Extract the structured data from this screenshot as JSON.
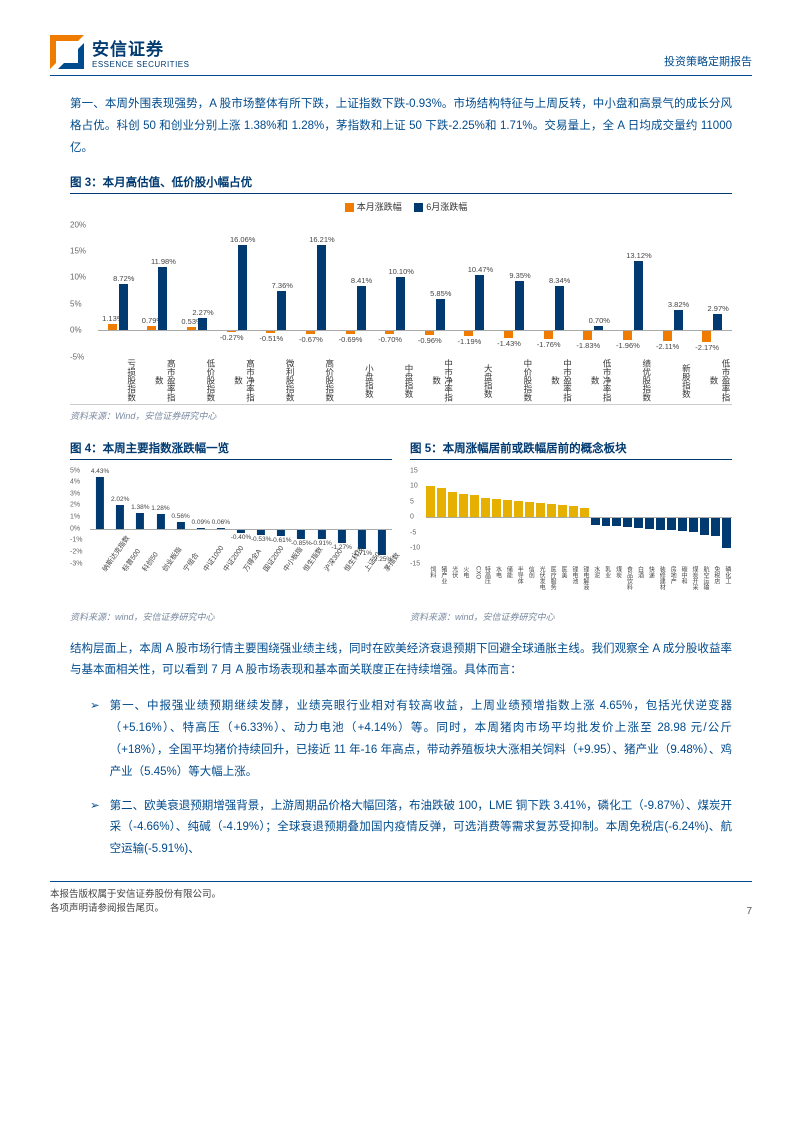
{
  "header": {
    "logo_cn": "安信证券",
    "logo_en": "ESSENCE SECURITIES",
    "report_type": "投资策略定期报告"
  },
  "para1": "第一、本周外围表现强势，A 股市场整体有所下跌，上证指数下跌-0.93%。市场结构特征与上周反转，中小盘和高景气的成长分风格占优。科创 50 和创业分别上涨 1.38%和 1.28%，茅指数和上证 50 下跌-2.25%和 1.71%。交易量上，全 A 日均成交量约 11000 亿。",
  "fig3": {
    "title": "图 3：本月高估值、低价股小幅占优",
    "legend": {
      "a": "本月涨跌幅",
      "b": "6月涨跌幅"
    },
    "colors": {
      "a": "#ef7c00",
      "b": "#003a70"
    },
    "ylim": [
      -5,
      20
    ],
    "yticks": [
      -5,
      0,
      5,
      10,
      15,
      20
    ],
    "categories": [
      "亏损股指数",
      "高市盈率指数",
      "低价股指数",
      "高市净率指数",
      "微利股指数",
      "高价股指数",
      "小盘指数",
      "中盘指数",
      "中市净率指数",
      "大盘指数",
      "中价股指数",
      "中市盈率指数",
      "低市净率指数",
      "绩优股指数",
      "新股指数",
      "低市盈率指数"
    ],
    "series_a": [
      1.13,
      0.79,
      0.53,
      -0.27,
      -0.51,
      -0.67,
      -0.69,
      -0.7,
      -0.96,
      -1.19,
      -1.43,
      -1.76,
      -1.83,
      -1.96,
      -2.11,
      -2.17
    ],
    "series_b": [
      8.72,
      11.98,
      2.27,
      16.06,
      7.36,
      16.21,
      8.41,
      10.1,
      5.85,
      10.47,
      9.35,
      8.34,
      0.7,
      13.12,
      3.82,
      2.97
    ],
    "source": "资料来源：Wind，安信证券研究中心"
  },
  "fig4": {
    "title": "图 4：本周主要指数涨跌幅一览",
    "color": "#003a70",
    "ylim": [
      -3,
      5
    ],
    "yticks": [
      -3,
      -2,
      -1,
      0,
      1,
      2,
      3,
      4,
      5
    ],
    "categories": [
      "纳斯达克指数",
      "标普500",
      "科创50",
      "创业板指",
      "宁组合",
      "中证1000",
      "中证2000",
      "万得全A",
      "国证2000",
      "中小板指",
      "恒生指数",
      "沪深300",
      "恒生科技",
      "上证50",
      "茅指数"
    ],
    "values": [
      4.43,
      2.02,
      1.38,
      1.28,
      0.56,
      0.09,
      0.06,
      -0.4,
      -0.53,
      -0.61,
      -0.85,
      -0.91,
      -1.27,
      -1.71,
      -2.25
    ],
    "source": "资料来源：wind，安信证券研究中心"
  },
  "fig5": {
    "title": "图 5：本周涨幅居前或跌幅居前的概念板块",
    "colors": {
      "pos": "#e6b000",
      "neg": "#003a70"
    },
    "ylim": [
      -15,
      15
    ],
    "yticks": [
      -15,
      -10,
      -5,
      0,
      5,
      10,
      15
    ],
    "categories": [
      "饲料",
      "猪产业",
      "光伏",
      "火电",
      "CXO",
      "特高压",
      "水电",
      "储能",
      "半导体",
      "信创",
      "光伏发电",
      "医疗服务",
      "医美",
      "锂电池",
      "锂电解液",
      "水泥",
      "乳业",
      "煤炭",
      "食品饮料",
      "白酒",
      "快递",
      "装修建材",
      "房地产",
      "碳中和",
      "煤炭开采",
      "航空运输",
      "免税店",
      "磷化工"
    ],
    "values": [
      9.9,
      9.5,
      8.2,
      7.5,
      7.2,
      6.3,
      5.8,
      5.5,
      5.2,
      4.8,
      4.5,
      4.2,
      3.8,
      3.5,
      3.0,
      -2.5,
      -2.8,
      -3.0,
      -3.3,
      -3.6,
      -3.9,
      -4.1,
      -4.3,
      -4.5,
      -4.7,
      -5.9,
      -6.2,
      -9.9
    ],
    "source": "资料来源：wind，安信证券研究中心"
  },
  "para2": "结构层面上，本周 A 股市场行情主要围绕强业绩主线，同时在欧美经济衰退预期下回避全球通胀主线。我们观察全 A 成分股收益率与基本面相关性，可以看到 7 月 A 股市场表现和基本面关联度正在持续增强。具体而言：",
  "bullet1": "第一、中报强业绩预期继续发酵，业绩亮眼行业相对有较高收益，上周业绩预增指数上涨 4.65%，包括光伏逆变器（+5.16%）、特高压（+6.33%）、动力电池（+4.14%）等。同时，本周猪肉市场平均批发价上涨至 28.98 元/公斤（+18%），全国平均猪价持续回升，已接近 11 年-16 年高点，带动养殖板块大涨相关饲料（+9.95）、猪产业（9.48%）、鸡产业（5.45%）等大幅上涨。",
  "bullet2": "第二、欧美衰退预期增强背景，上游周期品价格大幅回落，布油跌破 100，LME 铜下跌 3.41%，磷化工（-9.87%）、煤炭开采（-4.66%）、纯碱（-4.19%）；全球衰退预期叠加国内疫情反弹，可选消费等需求复苏受抑制。本周免税店(-6.24%)、航空运输(-5.91%)、",
  "footer": {
    "line1": "本报告版权属于安信证券股份有限公司。",
    "line2": "各项声明请参阅报告尾页。",
    "page": "7"
  }
}
